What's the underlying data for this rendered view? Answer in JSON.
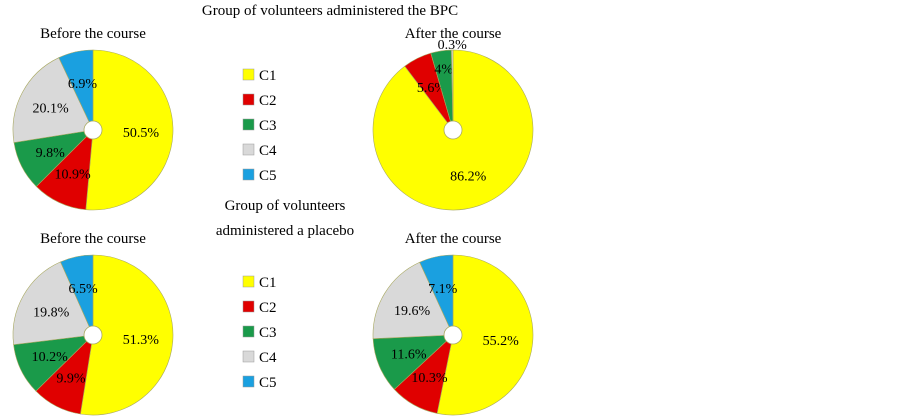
{
  "chart_data": [
    {
      "type": "pie",
      "group_title": "Group of volunteers administered the BPC",
      "title": "Before the course",
      "categories": [
        "C1",
        "C2",
        "C3",
        "C4",
        "C5"
      ],
      "values": [
        50.5,
        10.9,
        9.8,
        20.1,
        6.9
      ],
      "labels": [
        "50.5%",
        "10.9%",
        "9.8%",
        "20.1%",
        "6.9%"
      ]
    },
    {
      "type": "pie",
      "group_title": "Group of volunteers administered the BPC",
      "title": "After the course",
      "categories": [
        "C1",
        "C2",
        "C3",
        "C4"
      ],
      "values": [
        86.2,
        5.6,
        4,
        0.3
      ],
      "labels": [
        "86.2%",
        "5.6%",
        "4%",
        "0.3%"
      ]
    },
    {
      "type": "pie",
      "group_title": "Group of volunteers administered a placebo",
      "title": "Before the course",
      "categories": [
        "C1",
        "C2",
        "C3",
        "C4",
        "C5"
      ],
      "values": [
        51.3,
        9.9,
        10.2,
        19.8,
        6.5
      ],
      "labels": [
        "51.3%",
        "9.9%",
        "10.2%",
        "19.8%",
        "6.5%"
      ]
    },
    {
      "type": "pie",
      "group_title": "Group of volunteers administered a placebo",
      "title": "After the course",
      "categories": [
        "C1",
        "C2",
        "C3",
        "C4",
        "C5"
      ],
      "values": [
        55.2,
        10.3,
        11.6,
        19.6,
        7.1
      ],
      "labels": [
        "55.2%",
        "10.3%",
        "11.6%",
        "19.6%",
        "7.1%"
      ]
    }
  ],
  "titles": {
    "top": "Group of volunteers administered the BPC",
    "bottom_line1": "Group of volunteers",
    "bottom_line2": "administered a placebo"
  },
  "legend": {
    "items": [
      "C1",
      "C2",
      "C3",
      "C4",
      "C5"
    ]
  },
  "colors": {
    "C1": "#ffff00",
    "C2": "#e00000",
    "C3": "#1a9a4a",
    "C4": "#d9d9d9",
    "C5": "#1aa0e0"
  }
}
